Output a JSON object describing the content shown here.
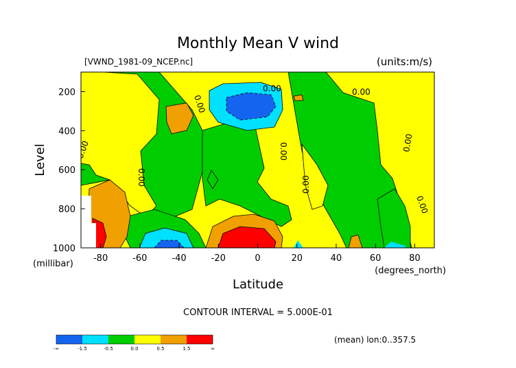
{
  "chart_data": {
    "type": "heatmap",
    "title": "Monthly Mean V wind",
    "file_label": "[VWND_1981-09_NCEP.nc]",
    "units_label": "(units:m/s)",
    "xlabel": "Latitude",
    "x_units": "(degrees_north)",
    "ylabel": "Level",
    "y_units": "(millibar)",
    "xlim": [
      -90,
      90
    ],
    "ylim": [
      1000,
      100
    ],
    "x_ticks": [
      -80,
      -60,
      -40,
      -20,
      0,
      20,
      40,
      60,
      80
    ],
    "y_ticks": [
      200,
      400,
      600,
      800,
      1000
    ],
    "contour_label": "CONTOUR INTERVAL = 5.000E-01",
    "domain_note": "(mean) lon:0..357.5",
    "contour_value_label": "0.00",
    "colorbar": {
      "bins": [
        {
          "color": "#1464f0",
          "label": "-∞"
        },
        {
          "color": "#00e1ff",
          "label": "-1.5"
        },
        {
          "color": "#00cd00",
          "label": "-0.5"
        },
        {
          "color": "#ffff00",
          "label": "0.0"
        },
        {
          "color": "#f0a000",
          "label": "0.5"
        },
        {
          "color": "#ff0000",
          "label": "1.5"
        }
      ],
      "end_label": "∞"
    },
    "levels": [
      0,
      0.5,
      1.5
    ],
    "neg_levels": [
      0,
      -0.5,
      -1.5
    ],
    "field_colors": {
      "green": "#00cd00",
      "yellow": "#ffff00",
      "orange": "#f0a000",
      "red": "#ff0000",
      "cyan": "#00e1ff",
      "blue": "#1464f0"
    }
  }
}
